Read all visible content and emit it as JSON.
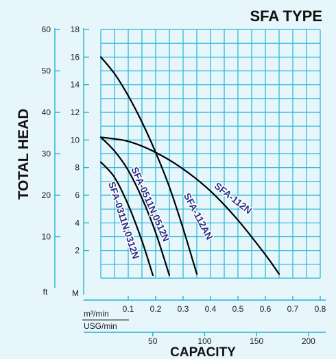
{
  "page": {
    "background": "#e6f6fb",
    "grid_color": "#22b3d6",
    "curve_color": "#000000",
    "label_color": "#2b2f86"
  },
  "chart_data": {
    "type": "line",
    "title": "SFA TYPE",
    "ylabel": "TOTAL HEAD",
    "xlabel": "CAPACITY",
    "grid": true,
    "x_unit_m3": "m³/min",
    "x_unit_usg": "USG/min",
    "y_unit_m": "M",
    "y_unit_ft": "ft",
    "xlim": [
      0,
      0.8
    ],
    "ylim_m": [
      0,
      18
    ],
    "ylim_ft": [
      0,
      60
    ],
    "x_ticks": [
      "0.1",
      "0.2",
      "0.3",
      "0.4",
      "0.5",
      "0.6",
      "0.7",
      "0.8"
    ],
    "usg_ticks": [
      "50",
      "100",
      "150",
      "200"
    ],
    "y_ticks_m": [
      "2",
      "4",
      "6",
      "8",
      "10",
      "12",
      "14",
      "16",
      "18"
    ],
    "y_ticks_ft": [
      "10",
      "20",
      "30",
      "40",
      "50",
      "60"
    ],
    "series": [
      {
        "name": "SFA-0311N,0312N",
        "x": [
          0.0,
          0.05,
          0.1,
          0.15,
          0.19
        ],
        "y": [
          8.4,
          7.3,
          5.3,
          2.7,
          0.2
        ]
      },
      {
        "name": "SFA-0511N,0512N",
        "x": [
          0.0,
          0.05,
          0.1,
          0.15,
          0.2,
          0.25
        ],
        "y": [
          10.2,
          9.2,
          7.8,
          5.8,
          3.3,
          0.2
        ]
      },
      {
        "name": "SFA-112AN",
        "x": [
          0.0,
          0.05,
          0.1,
          0.15,
          0.2,
          0.25,
          0.3,
          0.35
        ],
        "y": [
          16.0,
          14.8,
          13.2,
          11.3,
          9.1,
          6.6,
          3.6,
          0.3
        ]
      },
      {
        "name": "SFA-112N",
        "x": [
          0.0,
          0.1,
          0.2,
          0.3,
          0.4,
          0.5,
          0.6,
          0.65
        ],
        "y": [
          10.2,
          9.9,
          9.1,
          7.9,
          6.3,
          4.2,
          1.7,
          0.3
        ]
      }
    ]
  }
}
